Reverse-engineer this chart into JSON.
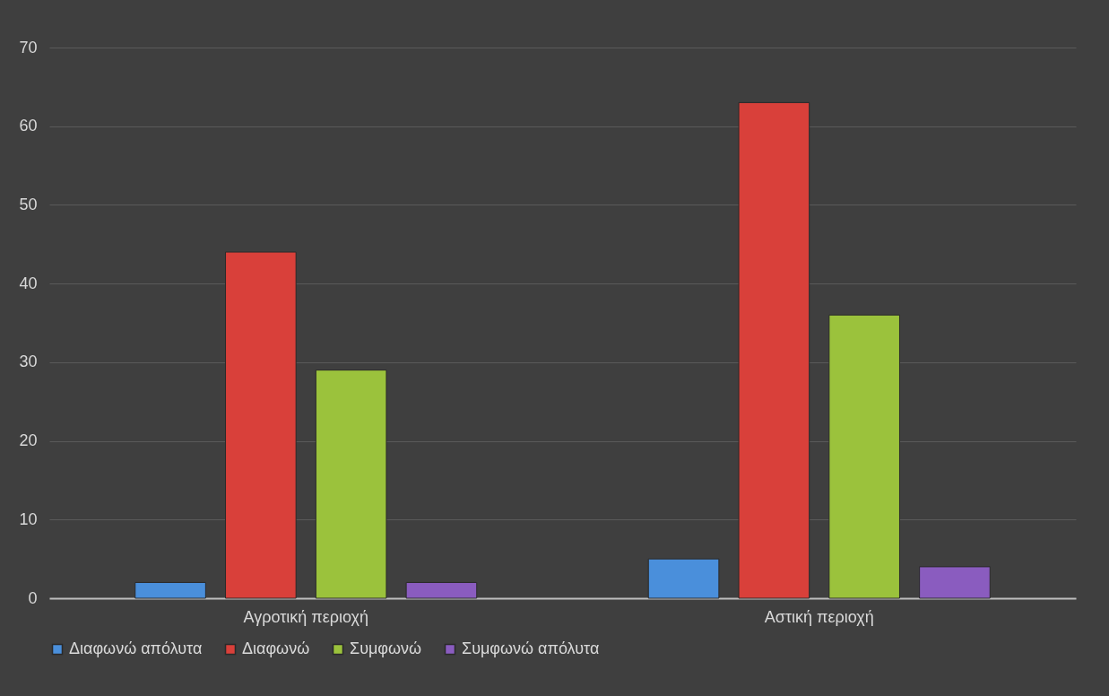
{
  "chart_data": {
    "type": "bar",
    "categories": [
      "Αγροτική περιοχή",
      "Αστική περιοχή"
    ],
    "series": [
      {
        "name": "Διαφωνώ απόλυτα",
        "color": "#4a8fdb",
        "values": [
          2,
          5
        ]
      },
      {
        "name": "Διαφωνώ",
        "color": "#d9403a",
        "values": [
          44,
          63
        ]
      },
      {
        "name": "Συμφωνώ",
        "color": "#9bc23c",
        "values": [
          29,
          36
        ]
      },
      {
        "name": "Συμφωνώ απόλυτα",
        "color": "#8a5cbf",
        "values": [
          2,
          4
        ]
      }
    ],
    "ylim": [
      0,
      70
    ],
    "yticks": [
      0,
      10,
      20,
      30,
      40,
      50,
      60,
      70
    ],
    "grid": "y",
    "legend": "bottom"
  }
}
